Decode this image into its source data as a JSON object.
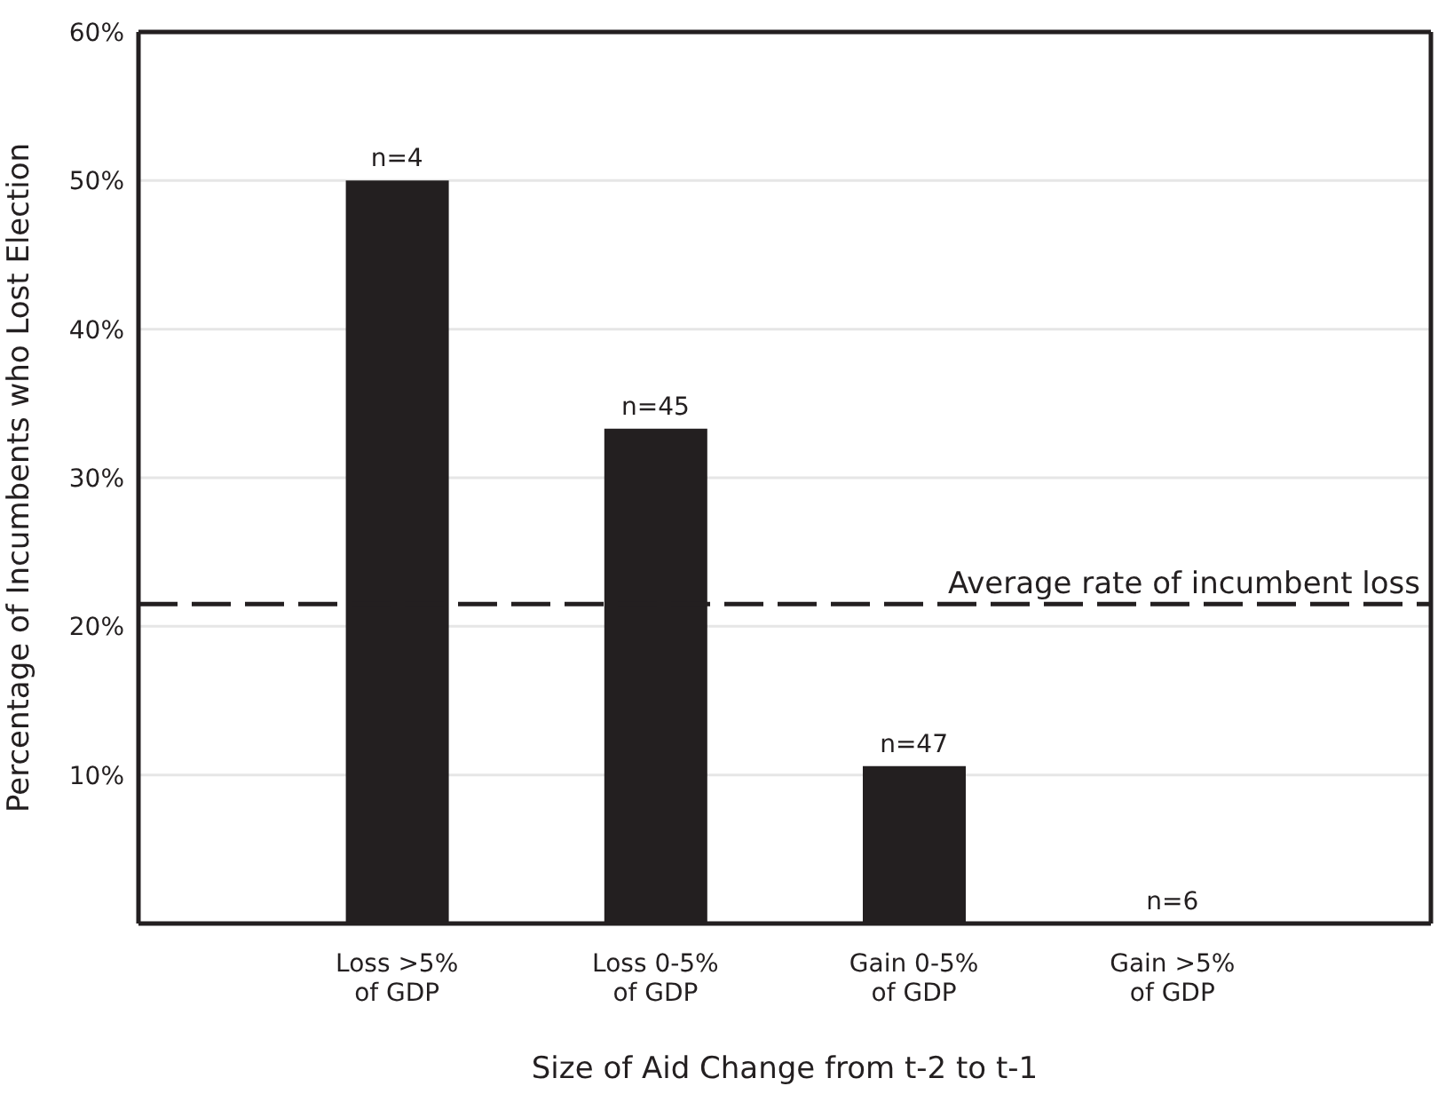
{
  "chart_data": {
    "type": "bar",
    "xlabel": "Size of Aid Change from t-2 to t-1",
    "ylabel": "Percentage of Incumbents who Lost Election",
    "categories": [
      "Loss >5%\nof GDP",
      "Loss 0-5%\nof GDP",
      "Gain 0-5%\nof GDP",
      "Gain >5%\nof GDP"
    ],
    "values": [
      50,
      33.3,
      10.6,
      0
    ],
    "color": "#231f20",
    "annotations": [
      {
        "text": "n=4",
        "x": "Loss >5%\nof GDP",
        "y": 50
      },
      {
        "text": "n=45",
        "x": "Loss 0-5%\nof GDP",
        "y": 33.3
      },
      {
        "text": "n=47",
        "x": "Gain 0-5%\nof GDP",
        "y": 10.6
      },
      {
        "text": "n=6",
        "x": "Gain >5%\nof GDP",
        "y": 0
      }
    ],
    "ylim": [
      0,
      60
    ],
    "yticks": [
      {
        "value": 10,
        "label": "10%"
      },
      {
        "value": 20,
        "label": "20%"
      },
      {
        "value": 30,
        "label": "30%"
      },
      {
        "value": 40,
        "label": "40%"
      },
      {
        "value": 50,
        "label": "50%"
      },
      {
        "value": 60,
        "label": "60%"
      }
    ],
    "grid": "y",
    "ref_lines": [
      {
        "axis": "y",
        "value": 21.5,
        "label": "Average rate of incumbent loss",
        "color": "#231f20",
        "line_style": "dashed"
      }
    ]
  }
}
